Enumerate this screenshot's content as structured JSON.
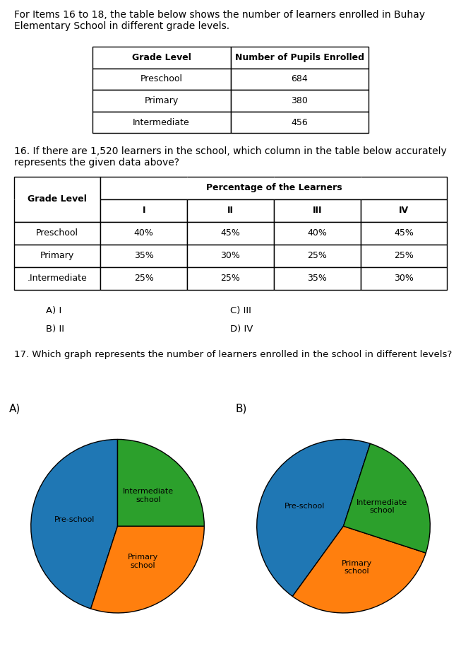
{
  "chart_data": [
    {
      "type": "table",
      "title": "For Items 16 to 18, the table below shows the number of learners enrolled in Buhay Elementary School in different grade levels.",
      "columns": [
        "Grade Level",
        "Number of Pupils Enrolled"
      ],
      "categories": [
        "Preschool",
        "Primary",
        "Intermediate"
      ],
      "values": [
        684,
        380,
        456
      ]
    },
    {
      "type": "table",
      "title": "16. If there are 1,520 learners in the school, which column in the table below accurately represents the given data above?",
      "row_header": "Grade Level",
      "column_group": "Percentage of the Learners",
      "columns": [
        "I",
        "II",
        "III",
        "IV"
      ],
      "categories": [
        "Preschool",
        "Primary",
        ".Intermediate"
      ],
      "values": [
        [
          40,
          45,
          40,
          45
        ],
        [
          35,
          30,
          25,
          25
        ],
        [
          25,
          25,
          35,
          30
        ]
      ],
      "value_labels": [
        [
          "40%",
          "45%",
          "40%",
          "45%"
        ],
        [
          "35%",
          "30%",
          "25%",
          "25%"
        ],
        [
          "25%",
          "25%",
          "35%",
          "30%"
        ]
      ],
      "annotations": [
        "A) I",
        "B) II",
        "C) III",
        "D) IV"
      ]
    },
    {
      "type": "pie",
      "annotations": [
        "17. Which graph represents the number of learners enrolled in the school in different levels?"
      ],
      "title": "A)",
      "categories": [
        "Pre-school",
        "Primary\nschool",
        "Intermediate\nschool"
      ],
      "values": [
        45,
        30,
        25
      ]
    },
    {
      "type": "pie",
      "title": "B)",
      "categories": [
        "Pre-school",
        "Primary\nschool",
        "Intermediate\nschool"
      ],
      "values": [
        45,
        30,
        25
      ]
    }
  ]
}
